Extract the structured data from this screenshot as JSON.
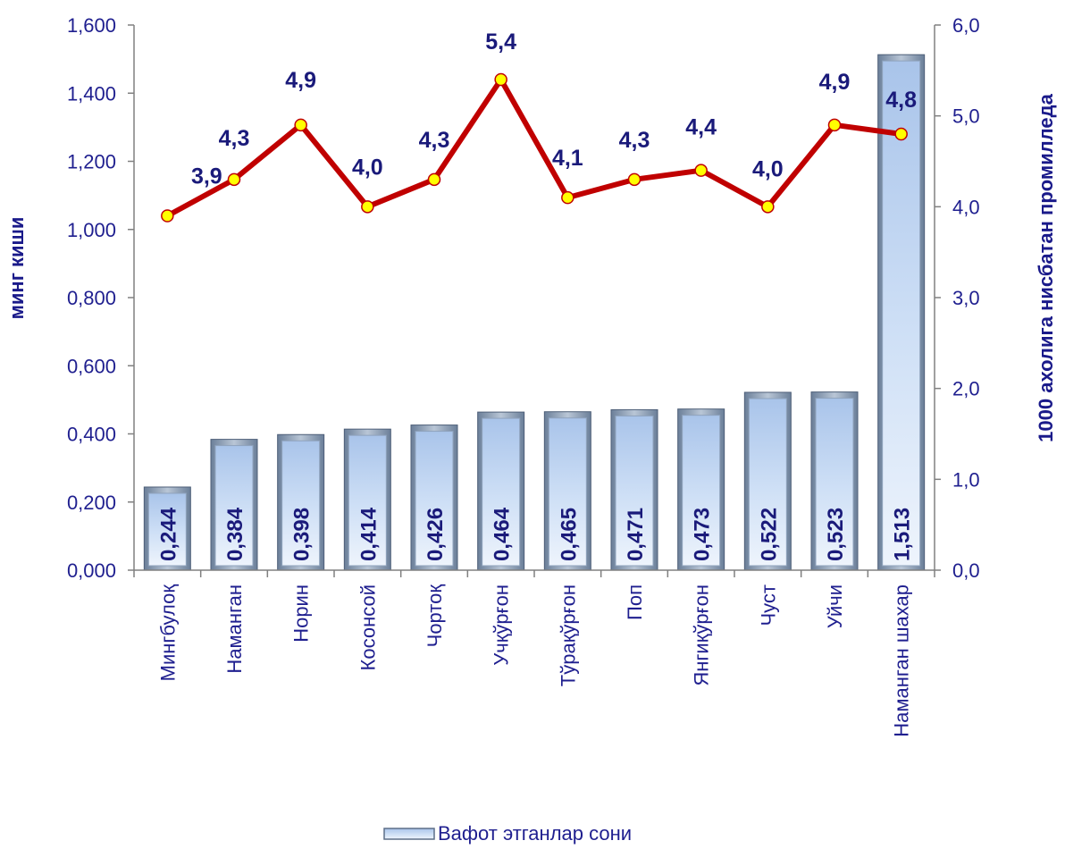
{
  "chart_data": {
    "type": "bar",
    "categories": [
      "Мингбулоқ",
      "Наманган",
      "Норин",
      "Косонсой",
      "Чортоқ",
      "Учқўрғон",
      "Тўрақўрғон",
      "Поп",
      "Янгиқўрғон",
      "Чуст",
      "Уйчи",
      "Наманган шахар"
    ],
    "series": [
      {
        "name": "Вафот этганлар сони",
        "type": "bar",
        "axis": "left",
        "values": [
          0.244,
          0.384,
          0.398,
          0.414,
          0.426,
          0.464,
          0.465,
          0.471,
          0.473,
          0.522,
          0.523,
          1.513
        ],
        "labels": [
          "0,244",
          "0,384",
          "0,398",
          "0,414",
          "0,426",
          "0,464",
          "0,465",
          "0,471",
          "0,473",
          "0,522",
          "0,523",
          "1,513"
        ],
        "color": "#c6d9f1"
      },
      {
        "type": "line",
        "axis": "right",
        "values": [
          3.9,
          4.3,
          4.9,
          4.0,
          4.3,
          5.4,
          4.1,
          4.3,
          4.4,
          4.0,
          4.9,
          4.8
        ],
        "labels": [
          "3,9",
          "4,3",
          "4,9",
          "4,0",
          "4,3",
          "5,4",
          "4,1",
          "4,3",
          "4,4",
          "4,0",
          "4,9",
          "4,8"
        ],
        "color": "#c00000",
        "marker_color": "#ffff00"
      }
    ],
    "y_left": {
      "label": "минг киши",
      "range": [
        0,
        1.6
      ],
      "ticks": [
        "0,000",
        "0,200",
        "0,400",
        "0,600",
        "0,800",
        "1,000",
        "1,200",
        "1,400",
        "1,600"
      ]
    },
    "y_right": {
      "label": "1000 ахолига нисбатан промилледа",
      "range": [
        0,
        6
      ],
      "ticks": [
        "0,0",
        "1,0",
        "2,0",
        "3,0",
        "4,0",
        "5,0",
        "6,0"
      ]
    },
    "grid": false,
    "legend": {
      "position": "bottom",
      "entries": [
        "Вафот этганлар сони"
      ]
    },
    "text_color": "#1f1f8f"
  }
}
